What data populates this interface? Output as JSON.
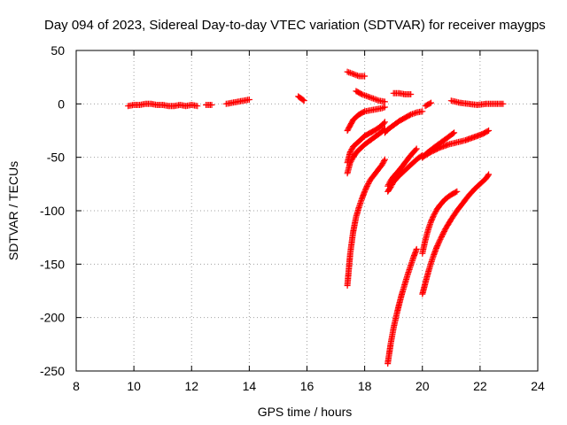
{
  "chart_data": {
    "type": "scatter",
    "title": "Day 094 of 2023, Sidereal Day-to-day VTEC variation (SDTVAR) for receiver maygps",
    "xlabel": "GPS time / hours",
    "ylabel": "SDTVAR / TECUs",
    "xlim": [
      8,
      24
    ],
    "ylim": [
      -250,
      50
    ],
    "xticks": [
      8,
      10,
      12,
      14,
      16,
      18,
      20,
      22,
      24
    ],
    "yticks": [
      -250,
      -200,
      -150,
      -100,
      -50,
      0,
      50
    ],
    "grid": true,
    "marker": "+",
    "colors": {
      "points": "#ff0000",
      "grid": "#a0a0a0",
      "axes": "#000000"
    },
    "series": [
      {
        "name": "segment-1",
        "x": [
          9.8,
          10.0,
          10.2,
          10.4,
          10.6,
          10.8,
          11.0,
          11.2,
          11.4,
          11.6,
          11.8,
          12.0,
          12.2
        ],
        "y": [
          -2,
          -1,
          -1,
          0,
          0,
          -1,
          -1,
          -2,
          -2,
          -1,
          -2,
          -1,
          -2
        ]
      },
      {
        "name": "segment-2",
        "x": [
          12.5,
          12.7
        ],
        "y": [
          -1,
          -1
        ]
      },
      {
        "name": "segment-3",
        "x": [
          13.2,
          13.4,
          13.6,
          13.8,
          14.0
        ],
        "y": [
          0,
          1,
          2,
          3,
          4
        ]
      },
      {
        "name": "segment-4",
        "x": [
          15.7,
          15.8,
          15.9
        ],
        "y": [
          7,
          5,
          3
        ]
      },
      {
        "name": "segment-5",
        "x": [
          17.4,
          17.6,
          17.8,
          18.0
        ],
        "y": [
          30,
          28,
          26,
          26
        ]
      },
      {
        "name": "segment-6",
        "x": [
          17.7,
          17.9,
          18.1,
          18.3,
          18.5,
          18.7
        ],
        "y": [
          12,
          9,
          7,
          5,
          3,
          2
        ]
      },
      {
        "name": "segment-7",
        "x": [
          19.0,
          19.2,
          19.4,
          19.6
        ],
        "y": [
          10,
          10,
          9,
          9
        ]
      },
      {
        "name": "segment-8",
        "x": [
          20.1,
          20.3
        ],
        "y": [
          -2,
          1
        ]
      },
      {
        "name": "segment-9",
        "x": [
          21.0,
          21.3,
          21.6,
          21.9,
          22.2,
          22.5,
          22.8
        ],
        "y": [
          3,
          1,
          0,
          -1,
          0,
          0,
          0
        ]
      },
      {
        "name": "segment-10",
        "x": [
          17.4,
          17.6,
          17.8,
          18.0,
          18.2,
          18.4,
          18.6,
          18.7
        ],
        "y": [
          -25,
          -15,
          -10,
          -7,
          -6,
          -5,
          -4,
          -3
        ]
      },
      {
        "name": "segment-11",
        "x": [
          17.4,
          17.5,
          17.6,
          17.8,
          18.0,
          18.2,
          18.4,
          18.6,
          18.7
        ],
        "y": [
          -55,
          -45,
          -40,
          -35,
          -30,
          -27,
          -24,
          -20,
          -17
        ]
      },
      {
        "name": "segment-12",
        "x": [
          17.4,
          17.45,
          17.5,
          17.6,
          17.7,
          17.8,
          18.0,
          18.2,
          18.4,
          18.6,
          18.7
        ],
        "y": [
          -65,
          -60,
          -55,
          -50,
          -46,
          -43,
          -38,
          -34,
          -30,
          -26,
          -23
        ]
      },
      {
        "name": "segment-13",
        "x": [
          18.7,
          18.8,
          19.0,
          19.2,
          19.4,
          19.6,
          19.8,
          20.0
        ],
        "y": [
          -27,
          -24,
          -20,
          -16,
          -13,
          -10,
          -8,
          -7
        ]
      },
      {
        "name": "segment-14",
        "x": [
          17.4,
          17.5,
          17.6,
          17.7,
          17.8,
          17.9,
          18.0,
          18.1,
          18.2,
          18.4,
          18.6,
          18.7
        ],
        "y": [
          -170,
          -140,
          -120,
          -106,
          -97,
          -89,
          -82,
          -76,
          -71,
          -64,
          -57,
          -52
        ]
      },
      {
        "name": "segment-15",
        "x": [
          18.8,
          18.9,
          19.0,
          19.2,
          19.4,
          19.6,
          19.8
        ],
        "y": [
          -77,
          -72,
          -68,
          -62,
          -55,
          -48,
          -42
        ]
      },
      {
        "name": "segment-16",
        "x": [
          18.8,
          18.9,
          19.0,
          19.2,
          19.4,
          19.6,
          19.8,
          20.0
        ],
        "y": [
          -82,
          -78,
          -73,
          -67,
          -62,
          -57,
          -52,
          -48
        ]
      },
      {
        "name": "segment-17",
        "x": [
          20.0,
          20.2,
          20.4,
          20.6,
          20.8,
          21.0,
          21.1
        ],
        "y": [
          -50,
          -45,
          -41,
          -37,
          -33,
          -29,
          -27
        ]
      },
      {
        "name": "segment-18",
        "x": [
          20.0,
          20.3,
          20.6,
          20.9,
          21.2,
          21.5,
          21.8,
          22.1,
          22.3
        ],
        "y": [
          -50,
          -45,
          -41,
          -38,
          -36,
          -34,
          -31,
          -28,
          -25
        ]
      },
      {
        "name": "segment-19",
        "x": [
          18.8,
          18.9,
          19.0,
          19.1,
          19.2,
          19.3,
          19.4,
          19.5,
          19.6,
          19.7,
          19.8
        ],
        "y": [
          -243,
          -225,
          -210,
          -198,
          -187,
          -177,
          -168,
          -159,
          -151,
          -143,
          -136
        ]
      },
      {
        "name": "segment-20",
        "x": [
          20.0,
          20.1,
          20.2,
          20.3,
          20.4,
          20.5,
          20.6,
          20.8,
          21.0,
          21.2
        ],
        "y": [
          -140,
          -128,
          -118,
          -110,
          -104,
          -99,
          -95,
          -89,
          -85,
          -82
        ]
      },
      {
        "name": "segment-21",
        "x": [
          20.0,
          20.1,
          20.2,
          20.3,
          20.4,
          20.5,
          20.6,
          20.8,
          21.0,
          21.2,
          21.4,
          21.6,
          21.8,
          22.0,
          22.2,
          22.3
        ],
        "y": [
          -178,
          -168,
          -158,
          -149,
          -141,
          -134,
          -128,
          -117,
          -108,
          -100,
          -93,
          -86,
          -80,
          -75,
          -70,
          -66
        ]
      }
    ]
  }
}
